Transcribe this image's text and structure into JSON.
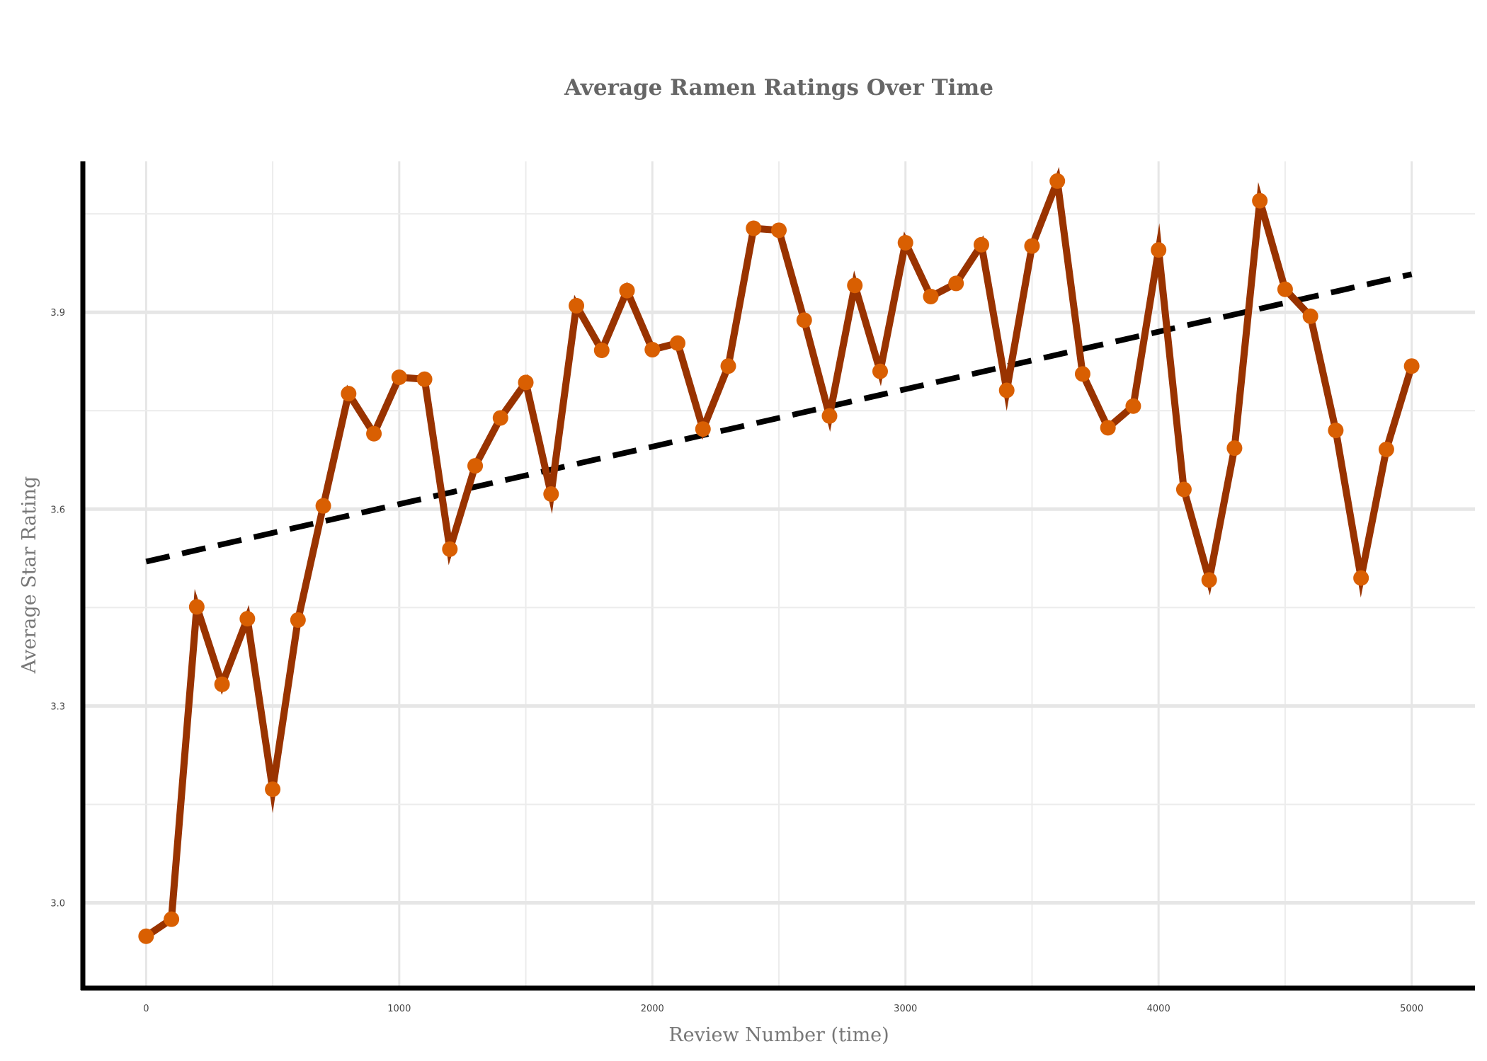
{
  "chart_data": {
    "type": "line",
    "title": "Average Ramen Ratings Over Time",
    "xlabel": "Review Number (time)",
    "ylabel": "Average Star Rating",
    "xlim": [
      -250,
      5250
    ],
    "ylim": [
      2.87,
      4.13
    ],
    "xticks": [
      {
        "value": 0,
        "label": "0"
      },
      {
        "value": 1000,
        "label": "1000"
      },
      {
        "value": 2000,
        "label": "2000"
      },
      {
        "value": 3000,
        "label": "3000"
      },
      {
        "value": 4000,
        "label": "4000"
      },
      {
        "value": 5000,
        "label": "5000"
      }
    ],
    "yticks": [
      {
        "value": 3.0,
        "label": "3.0"
      },
      {
        "value": 3.3,
        "label": "3.3"
      },
      {
        "value": 3.6,
        "label": "3.6"
      },
      {
        "value": 3.9,
        "label": "3.9"
      }
    ],
    "x_minor_grid": [
      500,
      1500,
      2500,
      3500,
      4500
    ],
    "y_minor_grid": [
      3.15,
      3.45,
      3.75,
      4.05
    ],
    "grid": true,
    "legend": "none",
    "series": [
      {
        "kind": "line+markers",
        "line_color": "#993300",
        "marker_color": "#d95f02",
        "x": [
          0,
          100,
          200,
          300,
          400,
          500,
          600,
          700,
          800,
          900,
          1000,
          1100,
          1200,
          1300,
          1400,
          1500,
          1600,
          1700,
          1800,
          1900,
          2000,
          2100,
          2200,
          2300,
          2400,
          2500,
          2600,
          2700,
          2800,
          2900,
          3000,
          3100,
          3200,
          3300,
          3400,
          3500,
          3600,
          3700,
          3800,
          3900,
          4000,
          4100,
          4200,
          4300,
          4400,
          4500,
          4600,
          4700,
          4800,
          4900,
          5000
        ],
        "y": [
          2.949,
          2.975,
          3.451,
          3.333,
          3.433,
          3.173,
          3.431,
          3.605,
          3.776,
          3.715,
          3.801,
          3.798,
          3.539,
          3.666,
          3.739,
          3.793,
          3.623,
          3.91,
          3.842,
          3.933,
          3.843,
          3.853,
          3.722,
          3.818,
          4.028,
          4.025,
          3.888,
          3.742,
          3.941,
          3.81,
          4.006,
          3.924,
          3.944,
          4.003,
          3.781,
          4.001,
          4.1,
          3.806,
          3.724,
          3.757,
          3.995,
          3.63,
          3.492,
          3.693,
          4.07,
          3.935,
          3.894,
          3.72,
          3.495,
          3.691,
          3.818
        ]
      },
      {
        "kind": "trend",
        "line_color": "#000000",
        "x": [
          0,
          5000
        ],
        "y": [
          3.52,
          3.958
        ]
      }
    ]
  }
}
